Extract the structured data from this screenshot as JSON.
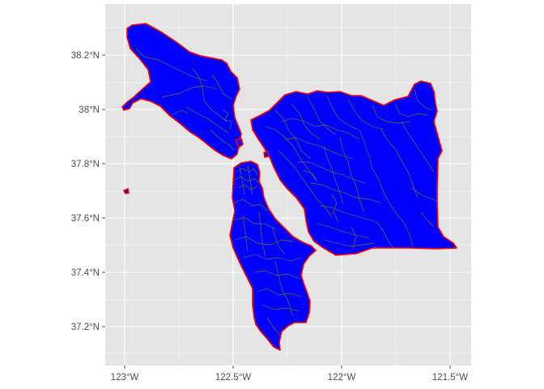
{
  "map": {
    "type": "choropleth-outline",
    "fill_color": "#0000ff",
    "outer_border_color": "#ff0000",
    "tract_border_color": "#5a5a5a",
    "panel_background": "#e5e5e5",
    "grid": true,
    "x_ticks": [
      "123°W",
      "122.5°W",
      "122°W",
      "121.5°W"
    ],
    "y_ticks": [
      "38.2°N",
      "38°N",
      "37.8°N",
      "37.6°N",
      "37.4°N",
      "37.2°N"
    ]
  }
}
